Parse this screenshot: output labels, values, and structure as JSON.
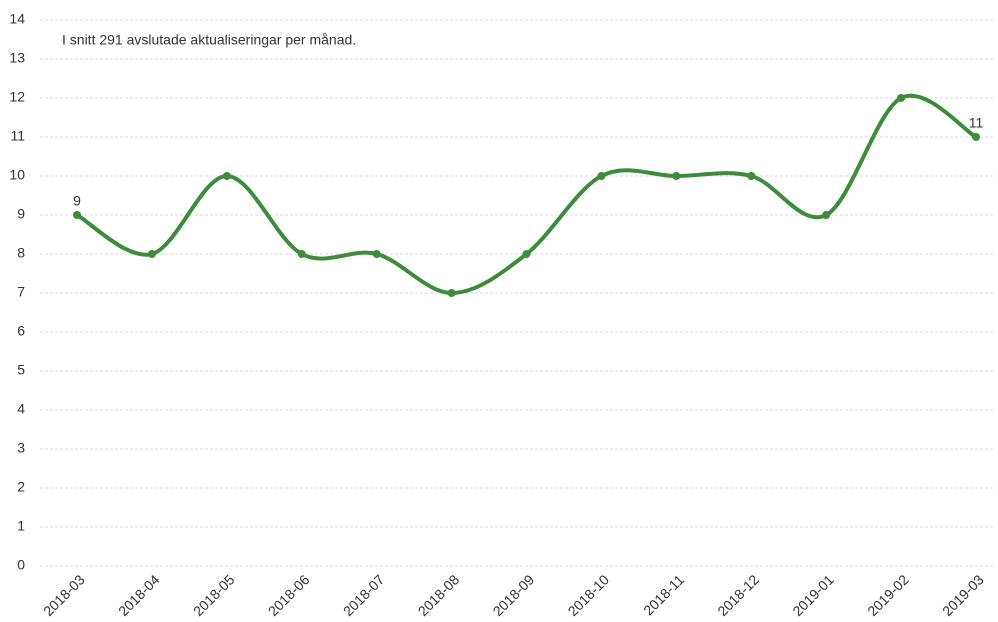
{
  "chart_data": {
    "type": "line",
    "annotation": "I snitt 291 avslutade aktualiseringar per månad.",
    "categories": [
      "2018-03",
      "2018-04",
      "2018-05",
      "2018-06",
      "2018-07",
      "2018-08",
      "2018-09",
      "2018-10",
      "2018-11",
      "2018-12",
      "2019-01",
      "2019-02",
      "2019-03"
    ],
    "values": [
      9,
      8,
      10,
      8,
      8,
      7,
      8,
      10,
      10,
      10,
      9,
      12,
      11
    ],
    "color": "#3d8b3d",
    "smooth": true,
    "data_labels": "ends",
    "ylim": [
      0,
      14
    ],
    "yticks": [
      0,
      1,
      2,
      3,
      4,
      5,
      6,
      7,
      8,
      9,
      10,
      11,
      12,
      13,
      14
    ],
    "grid": true
  }
}
